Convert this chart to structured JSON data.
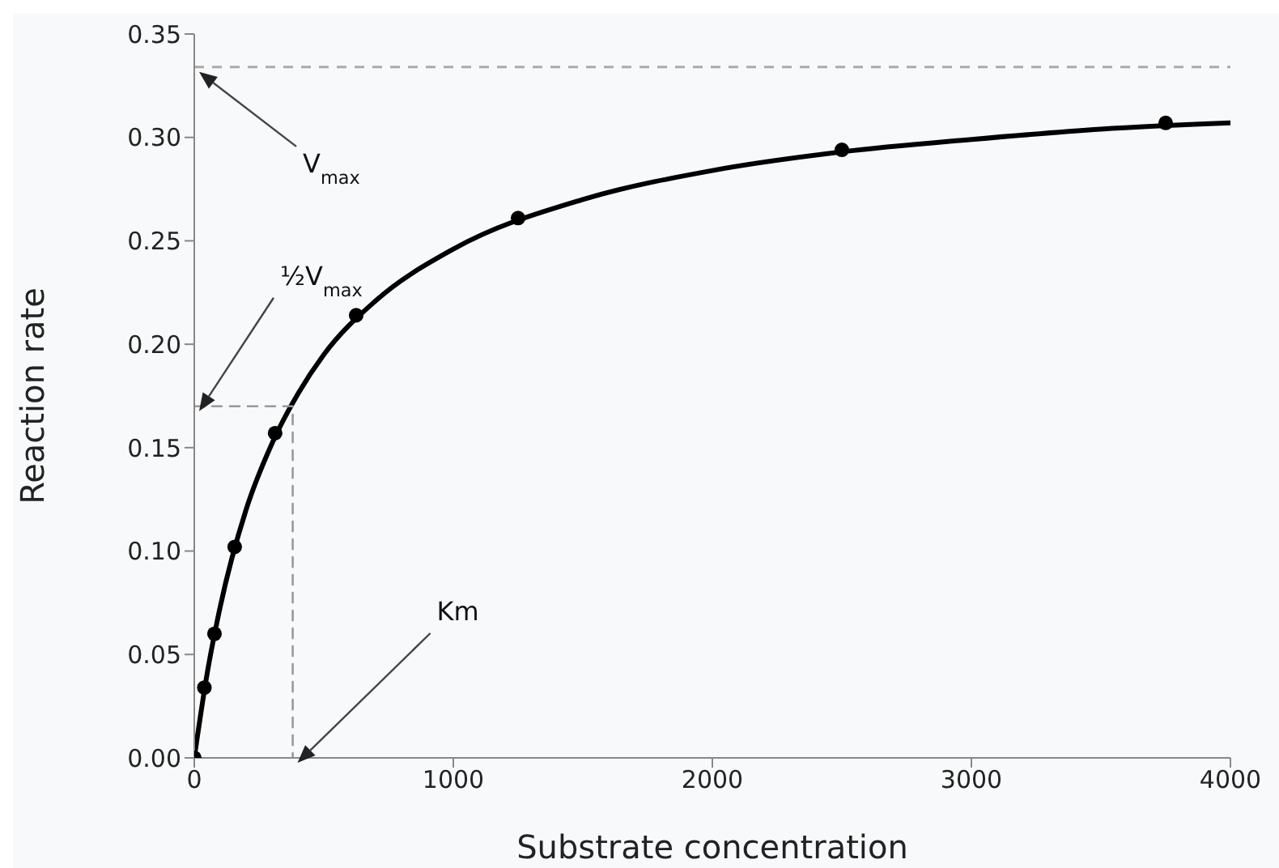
{
  "chart_data": {
    "type": "line",
    "xlabel": "Substrate concentration",
    "ylabel": "Reaction rate",
    "xlim": [
      0,
      4000
    ],
    "xticks": [
      0,
      1000,
      2000,
      3000,
      4000
    ],
    "ylim": [
      0,
      0.35
    ],
    "yticks": [
      {
        "value": 0,
        "label": "0.00"
      },
      {
        "value": 0.05,
        "label": "0.05"
      },
      {
        "value": 0.1,
        "label": "0.10"
      },
      {
        "value": 0.15,
        "label": "0.15"
      },
      {
        "value": 0.2,
        "label": "0.20"
      },
      {
        "value": 0.25,
        "label": "0.25"
      },
      {
        "value": 0.3,
        "label": "0.30"
      },
      {
        "value": 0.35,
        "label": "0.35"
      }
    ],
    "series": [
      {
        "color": "#000000",
        "marker": "none",
        "line_style": "solid",
        "x": [
          0,
          50,
          100,
          200,
          300,
          400,
          500,
          700,
          1000,
          1500,
          2000,
          2500,
          3000,
          3500,
          4000
        ],
        "values": [
          0,
          0.041,
          0.073,
          0.12,
          0.152,
          0.176,
          0.195,
          0.221,
          0.246,
          0.27,
          0.284,
          0.293,
          0.299,
          0.304,
          0.307
        ]
      },
      {
        "type": "scatter",
        "color": "#000000",
        "marker": "circle",
        "x": [
          0,
          39,
          78,
          156,
          312,
          625,
          1250,
          2500,
          3750
        ],
        "values": [
          0,
          0.034,
          0.06,
          0.102,
          0.157,
          0.214,
          0.261,
          0.294,
          0.307
        ]
      },
      {
        "color": "#999999",
        "marker": "none",
        "line_style": "dashed",
        "x": [
          0,
          380,
          380
        ],
        "values": [
          0.17,
          0.17,
          0
        ]
      }
    ],
    "ref_lines": [
      {
        "axis": "y",
        "value": 0.334,
        "color": "#aaaaaa",
        "line_style": "dashed"
      }
    ],
    "annotations": [
      "V$_{max}$",
      "½V$_{max}$",
      "Km"
    ]
  }
}
